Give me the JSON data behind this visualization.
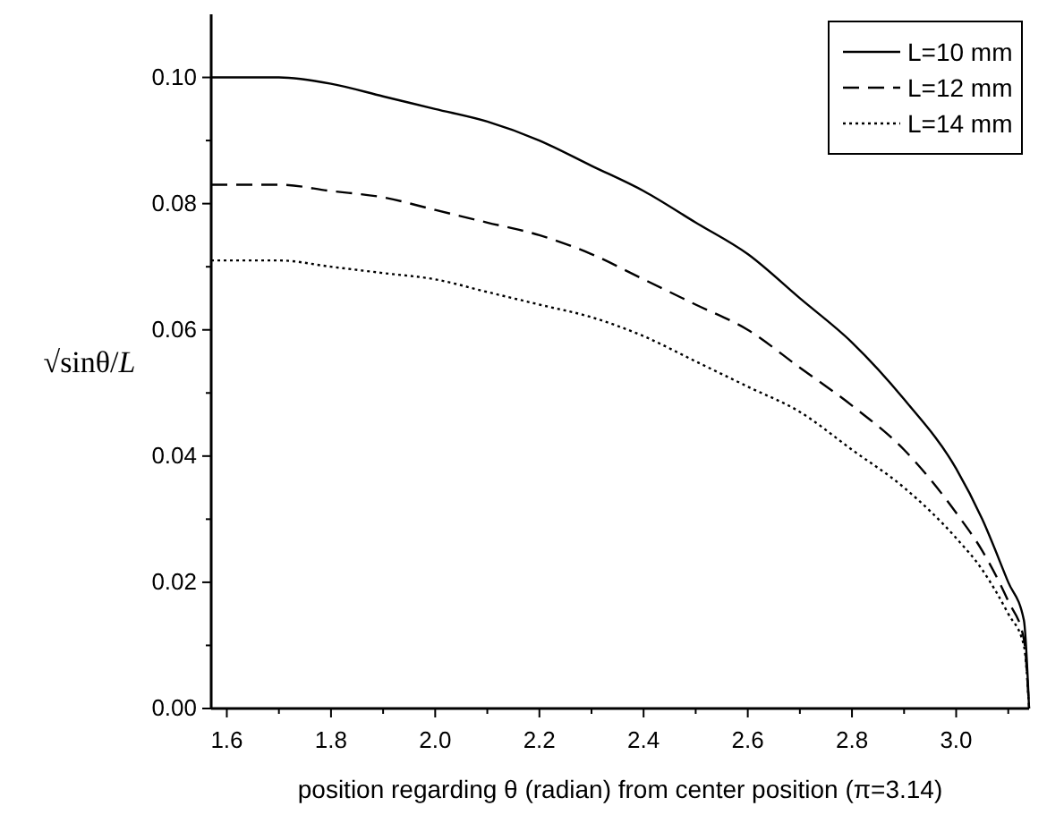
{
  "chart_data": {
    "type": "line",
    "xlabel": "position regarding θ (radian) from center position (π=3.14)",
    "ylabel": "√sinθ/L",
    "x": [
      1.57,
      1.7,
      1.8,
      1.9,
      2.0,
      2.1,
      2.2,
      2.3,
      2.4,
      2.5,
      2.6,
      2.7,
      2.8,
      2.9,
      3.0,
      3.05,
      3.1,
      3.13,
      3.14
    ],
    "series": [
      {
        "name": "L=10 mm",
        "color": "#000000",
        "line_style": "solid",
        "values": [
          0.1,
          0.1,
          0.099,
          0.097,
          0.095,
          0.093,
          0.09,
          0.086,
          0.082,
          0.077,
          0.072,
          0.065,
          0.058,
          0.049,
          0.038,
          0.03,
          0.02,
          0.014,
          0.0
        ]
      },
      {
        "name": "L=12 mm",
        "color": "#000000",
        "line_style": "dashed",
        "values": [
          0.083,
          0.083,
          0.082,
          0.081,
          0.079,
          0.077,
          0.075,
          0.072,
          0.068,
          0.064,
          0.06,
          0.054,
          0.048,
          0.041,
          0.031,
          0.025,
          0.017,
          0.011,
          0.0
        ]
      },
      {
        "name": "L=14 mm",
        "color": "#000000",
        "line_style": "dotted",
        "values": [
          0.071,
          0.071,
          0.07,
          0.069,
          0.068,
          0.066,
          0.064,
          0.062,
          0.059,
          0.055,
          0.051,
          0.047,
          0.041,
          0.035,
          0.027,
          0.022,
          0.015,
          0.01,
          0.0
        ]
      }
    ],
    "xlim": [
      1.57,
      3.14
    ],
    "ylim": [
      0,
      0.11
    ],
    "xticks": [
      1.6,
      {
        "value": 1.7,
        "label": null
      },
      1.8,
      {
        "value": 1.9,
        "label": null
      },
      {
        "value": 2.0,
        "label": "2.0"
      },
      {
        "value": 2.1,
        "label": null
      },
      2.2,
      {
        "value": 2.3,
        "label": null
      },
      2.4,
      {
        "value": 2.5,
        "label": null
      },
      2.6,
      {
        "value": 2.7,
        "label": null
      },
      2.8,
      {
        "value": 2.9,
        "label": null
      },
      {
        "value": 3.0,
        "label": "3.0"
      },
      {
        "value": 3.1,
        "label": null
      }
    ],
    "yticks": [
      {
        "value": 0,
        "label": "0.00"
      },
      {
        "value": 0.01,
        "label": null
      },
      {
        "value": 0.02,
        "label": "0.02"
      },
      {
        "value": 0.03,
        "label": null
      },
      {
        "value": 0.04,
        "label": "0.04"
      },
      {
        "value": 0.05,
        "label": null
      },
      {
        "value": 0.06,
        "label": "0.06"
      },
      {
        "value": 0.07,
        "label": null
      },
      {
        "value": 0.08,
        "label": "0.08"
      },
      {
        "value": 0.09,
        "label": null
      },
      {
        "value": 0.1,
        "label": "0.10"
      }
    ],
    "grid": false,
    "legend": "top right"
  }
}
